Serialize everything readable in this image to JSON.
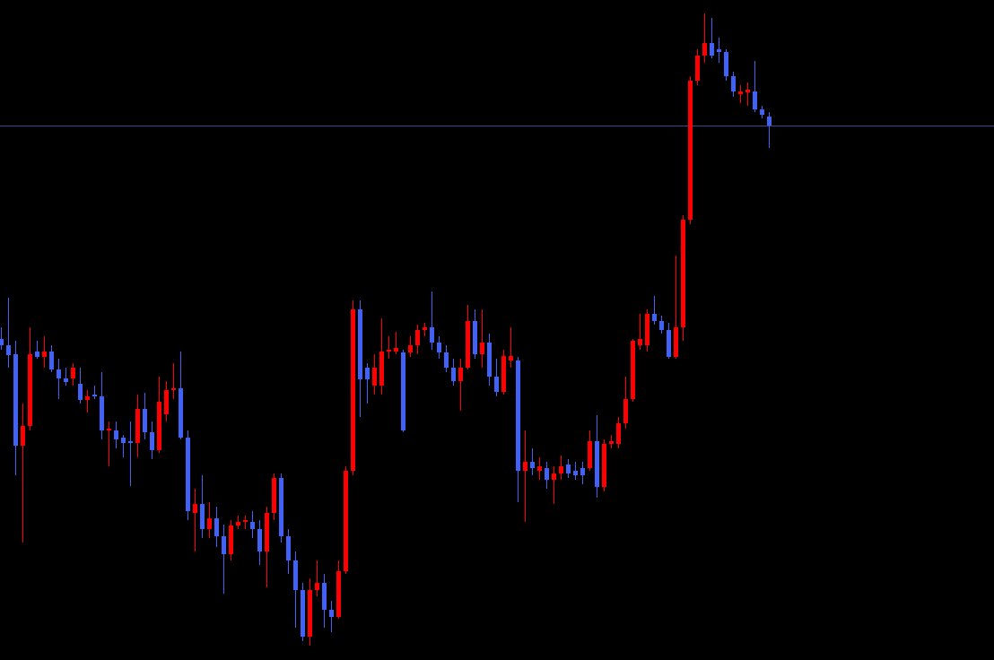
{
  "chart_data": {
    "type": "candlestick",
    "ylim": [
      0,
      736
    ],
    "up_color": "#ff0000",
    "down_color": "#4262f5",
    "price_line_color": "#3b4a8e",
    "price_line": 596,
    "open": [
      358,
      351,
      341,
      239,
      261,
      344,
      338,
      344,
      324,
      314,
      314,
      308,
      290,
      296,
      294,
      256,
      256,
      248,
      244,
      242,
      280,
      254,
      234,
      274,
      301,
      303,
      248,
      164,
      174,
      146,
      158,
      138,
      118,
      150,
      154,
      154,
      146,
      121,
      164,
      203,
      138,
      111,
      78,
      26,
      78,
      86,
      56,
      48,
      99,
      211,
      391,
      326,
      306,
      306,
      344,
      344,
      343,
      343,
      351,
      368,
      371,
      354,
      343,
      326,
      311,
      326,
      378,
      341,
      354,
      316,
      299,
      334,
      334,
      211,
      221,
      211,
      214,
      201,
      208,
      218,
      211,
      214,
      214,
      244,
      193,
      241,
      241,
      264,
      291,
      351,
      351,
      386,
      378,
      368,
      338,
      371,
      491,
      646,
      674,
      688,
      681,
      678,
      651,
      631,
      633,
      634,
      614,
      606
    ],
    "high": [
      371,
      404,
      356,
      286,
      371,
      356,
      361,
      351,
      336,
      326,
      331,
      326,
      301,
      306,
      321,
      266,
      266,
      251,
      266,
      296,
      298,
      266,
      316,
      311,
      331,
      344,
      256,
      191,
      206,
      176,
      171,
      151,
      156,
      161,
      161,
      166,
      156,
      171,
      208,
      208,
      146,
      121,
      86,
      91,
      111,
      96,
      66,
      111,
      216,
      401,
      401,
      331,
      341,
      381,
      361,
      366,
      346,
      361,
      374,
      376,
      411,
      361,
      351,
      336,
      336,
      396,
      391,
      391,
      364,
      336,
      346,
      371,
      338,
      256,
      236,
      226,
      221,
      216,
      228,
      224,
      221,
      221,
      256,
      273,
      246,
      251,
      271,
      316,
      358,
      386,
      391,
      406,
      384,
      376,
      451,
      496,
      651,
      681,
      721,
      716,
      694,
      681,
      656,
      641,
      644,
      668,
      618,
      611
    ],
    "low": [
      346,
      326,
      206,
      131,
      256,
      336,
      326,
      321,
      291,
      306,
      306,
      286,
      276,
      291,
      246,
      216,
      236,
      226,
      194,
      226,
      246,
      224,
      231,
      266,
      291,
      246,
      156,
      121,
      136,
      136,
      126,
      74,
      111,
      146,
      146,
      136,
      106,
      81,
      156,
      131,
      96,
      36,
      21,
      16,
      71,
      36,
      31,
      46,
      96,
      206,
      271,
      286,
      296,
      296,
      336,
      341,
      254,
      338,
      341,
      361,
      346,
      336,
      321,
      306,
      278,
      324,
      336,
      326,
      306,
      294,
      296,
      326,
      176,
      154,
      206,
      201,
      191,
      174,
      201,
      203,
      201,
      196,
      211,
      181,
      188,
      236,
      236,
      258,
      288,
      346,
      344,
      374,
      364,
      336,
      336,
      356,
      486,
      641,
      666,
      671,
      666,
      646,
      628,
      621,
      618,
      611,
      604,
      571
    ],
    "close": [
      351,
      340,
      239,
      261,
      341,
      338,
      344,
      324,
      314,
      310,
      326,
      290,
      294,
      294,
      256,
      258,
      246,
      242,
      242,
      280,
      254,
      234,
      288,
      301,
      303,
      248,
      166,
      174,
      146,
      158,
      138,
      118,
      150,
      154,
      156,
      146,
      121,
      164,
      203,
      138,
      111,
      78,
      26,
      78,
      86,
      56,
      48,
      99,
      211,
      391,
      313,
      313,
      326,
      344,
      346,
      348,
      256,
      351,
      368,
      371,
      354,
      343,
      326,
      311,
      326,
      378,
      341,
      354,
      316,
      299,
      339,
      339,
      211,
      221,
      214,
      216,
      201,
      208,
      216,
      208,
      206,
      206,
      244,
      193,
      241,
      244,
      264,
      291,
      356,
      358,
      386,
      378,
      368,
      338,
      371,
      491,
      646,
      674,
      688,
      674,
      678,
      651,
      634,
      634,
      636,
      614,
      608,
      596
    ]
  }
}
